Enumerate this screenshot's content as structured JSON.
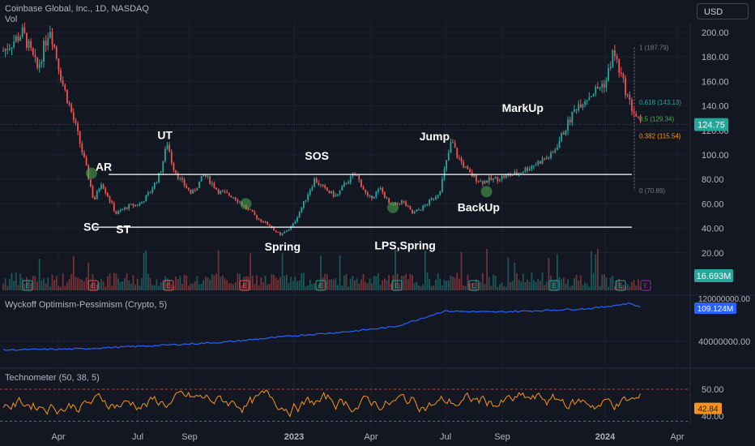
{
  "header": {
    "symbol_title": "Coinbase Global, Inc., 1D, NASDAQ",
    "volume_label": "Vol",
    "currency_button": "USD"
  },
  "colors": {
    "background": "#131722",
    "grid": "#1e222d",
    "up": "#26a69a",
    "down": "#ef5350",
    "annotation_line": "#ffffff",
    "optimism_line": "#2962ff",
    "technometer_line": "#f7931a",
    "earnings_red": "#ef5350",
    "earnings_green": "#26a69a",
    "marker_green": "#4caf50"
  },
  "chart_data": [
    {
      "type": "candlestick",
      "title": "Coinbase Global, Inc., 1D, NASDAQ",
      "x_ticks": [
        "Apr",
        "Jul",
        "Sep",
        "2023",
        "Apr",
        "Jul",
        "Sep",
        "2024",
        "Apr"
      ],
      "y_ticks": [
        "20.00",
        "40.00",
        "60.00",
        "80.00",
        "100.00",
        "120.00",
        "140.00",
        "160.00",
        "180.00",
        "200.00"
      ],
      "ylim": [
        0,
        210
      ],
      "last_price": "124.75",
      "volume_last": "16.693M",
      "price_path": [
        {
          "t": 0,
          "p": 185
        },
        {
          "t": 0.04,
          "p": 200
        },
        {
          "t": 0.07,
          "p": 170
        },
        {
          "t": 0.095,
          "p": 205
        },
        {
          "t": 0.12,
          "p": 160
        },
        {
          "t": 0.15,
          "p": 120
        },
        {
          "t": 0.175,
          "p": 80
        },
        {
          "t": 0.185,
          "p": 62
        },
        {
          "t": 0.2,
          "p": 78
        },
        {
          "t": 0.215,
          "p": 65
        },
        {
          "t": 0.23,
          "p": 52
        },
        {
          "t": 0.255,
          "p": 58
        },
        {
          "t": 0.28,
          "p": 60
        },
        {
          "t": 0.3,
          "p": 70
        },
        {
          "t": 0.32,
          "p": 85
        },
        {
          "t": 0.335,
          "p": 110
        },
        {
          "t": 0.345,
          "p": 92
        },
        {
          "t": 0.36,
          "p": 80
        },
        {
          "t": 0.385,
          "p": 68
        },
        {
          "t": 0.41,
          "p": 84
        },
        {
          "t": 0.44,
          "p": 70
        },
        {
          "t": 0.47,
          "p": 66
        },
        {
          "t": 0.5,
          "p": 55
        },
        {
          "t": 0.52,
          "p": 48
        },
        {
          "t": 0.545,
          "p": 42
        },
        {
          "t": 0.565,
          "p": 34
        },
        {
          "t": 0.59,
          "p": 42
        },
        {
          "t": 0.61,
          "p": 58
        },
        {
          "t": 0.635,
          "p": 80
        },
        {
          "t": 0.655,
          "p": 72
        },
        {
          "t": 0.68,
          "p": 66
        },
        {
          "t": 0.7,
          "p": 78
        },
        {
          "t": 0.72,
          "p": 84
        },
        {
          "t": 0.745,
          "p": 64
        },
        {
          "t": 0.77,
          "p": 72
        },
        {
          "t": 0.79,
          "p": 58
        },
        {
          "t": 0.815,
          "p": 62
        },
        {
          "t": 0.835,
          "p": 52
        },
        {
          "t": 0.86,
          "p": 58
        },
        {
          "t": 0.89,
          "p": 70
        },
        {
          "t": 0.915,
          "p": 112
        },
        {
          "t": 0.925,
          "p": 100
        },
        {
          "t": 0.95,
          "p": 85
        },
        {
          "t": 0.975,
          "p": 78
        },
        {
          "t": 1.0,
          "p": 80
        }
      ],
      "annotations": [
        {
          "label": "SC",
          "t": 0.18,
          "p": 38
        },
        {
          "label": "AR",
          "t": 0.205,
          "p": 87
        },
        {
          "label": "ST",
          "t": 0.245,
          "p": 36
        },
        {
          "label": "UT",
          "t": 0.33,
          "p": 113
        },
        {
          "label": "Spring",
          "t": 0.57,
          "p": 22
        },
        {
          "label": "SOS",
          "t": 0.64,
          "p": 96
        },
        {
          "label": "LPS,Spring",
          "t": 0.82,
          "p": 23
        },
        {
          "label": "Jump",
          "t": 0.88,
          "p": 112
        },
        {
          "label": "BackUp",
          "t": 0.97,
          "p": 54
        },
        {
          "label": "MarkUp",
          "t": 1.06,
          "p": 135
        }
      ],
      "horizontal_levels": [
        84,
        41
      ],
      "fibonacci_levels": [
        {
          "label": "1 (187.79)",
          "p": 187.79
        },
        {
          "label": "0.618 (143.13)",
          "p": 143.13
        },
        {
          "label": "0.5 (129.34)",
          "p": 129.34
        },
        {
          "label": "0.382 (115.54)",
          "p": 115.54
        },
        {
          "label": "0 (70.89)",
          "p": 70.89
        }
      ],
      "earnings_markers": [
        {
          "t": 0.055,
          "kind": "green"
        },
        {
          "t": 0.18,
          "kind": "red"
        },
        {
          "t": 0.34,
          "kind": "red"
        },
        {
          "t": 0.49,
          "kind": "red"
        },
        {
          "t": 0.64,
          "kind": "green"
        },
        {
          "t": 0.79,
          "kind": "green"
        },
        {
          "t": 0.93,
          "kind": "green"
        },
        {
          "t": 1.12,
          "kind": "green"
        },
        {
          "t": 1.25,
          "kind": "green"
        },
        {
          "t": 1.31,
          "kind": "purple"
        }
      ]
    },
    {
      "type": "line",
      "title": "Wyckoff Optimism-Pessimism (Crypto, 5)",
      "y_ticks": [
        "40000000.00"
      ],
      "last_value": "109.124M",
      "top_value": "120000000.00",
      "series_path": [
        {
          "t": 0,
          "v": 0.1
        },
        {
          "t": 0.15,
          "v": 0.12
        },
        {
          "t": 0.3,
          "v": 0.18
        },
        {
          "t": 0.45,
          "v": 0.25
        },
        {
          "t": 0.6,
          "v": 0.38
        },
        {
          "t": 0.7,
          "v": 0.45
        },
        {
          "t": 0.8,
          "v": 0.55
        },
        {
          "t": 0.9,
          "v": 0.85
        },
        {
          "t": 1.0,
          "v": 0.83
        },
        {
          "t": 1.1,
          "v": 0.86
        },
        {
          "t": 1.2,
          "v": 0.9
        },
        {
          "t": 1.28,
          "v": 1.0
        },
        {
          "t": 1.3,
          "v": 0.92
        }
      ]
    },
    {
      "type": "line",
      "title": "Technometer (50, 38, 5)",
      "y_ticks": [
        "50.00",
        "40.00"
      ],
      "last_value": "42.84",
      "upper_band": 50,
      "lower_band": 38,
      "ylim": [
        35,
        55
      ]
    }
  ]
}
